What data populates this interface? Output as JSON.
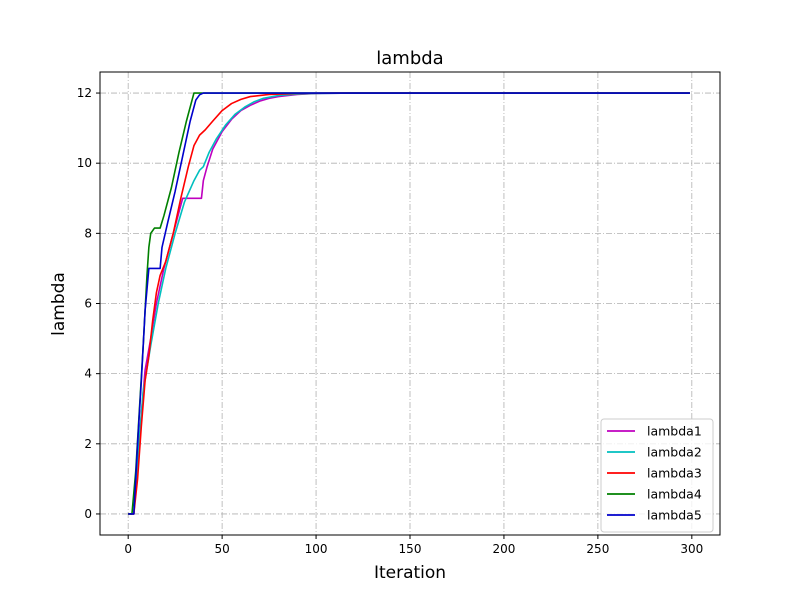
{
  "chart_data": {
    "type": "line",
    "title": "lambda",
    "xlabel": "Iteration",
    "ylabel": "lambda",
    "xlim": [
      -15,
      315
    ],
    "ylim": [
      -0.6,
      12.6
    ],
    "xticks": [
      0,
      50,
      100,
      150,
      200,
      250,
      300
    ],
    "yticks": [
      0,
      2,
      4,
      6,
      8,
      10,
      12
    ],
    "grid": true,
    "legend_position": "lower-right",
    "series": [
      {
        "name": "lambda1",
        "color": "#bf00bf",
        "points": [
          [
            0,
            0
          ],
          [
            3,
            0
          ],
          [
            6,
            2.2
          ],
          [
            9,
            4.1
          ],
          [
            12,
            5.0
          ],
          [
            15,
            6.0
          ],
          [
            19,
            7.0
          ],
          [
            23,
            7.8
          ],
          [
            27,
            8.6
          ],
          [
            29,
            9.0
          ],
          [
            34,
            9.0
          ],
          [
            39,
            9.0
          ],
          [
            40,
            9.5
          ],
          [
            42,
            9.9
          ],
          [
            45,
            10.4
          ],
          [
            50,
            10.9
          ],
          [
            55,
            11.25
          ],
          [
            60,
            11.5
          ],
          [
            65,
            11.65
          ],
          [
            70,
            11.77
          ],
          [
            75,
            11.85
          ],
          [
            80,
            11.9
          ],
          [
            90,
            11.96
          ],
          [
            100,
            11.99
          ],
          [
            120,
            12
          ],
          [
            299,
            12
          ]
        ]
      },
      {
        "name": "lambda2",
        "color": "#00bfbf",
        "points": [
          [
            0,
            0
          ],
          [
            3,
            0
          ],
          [
            5,
            1.5
          ],
          [
            8,
            3.5
          ],
          [
            12,
            4.8
          ],
          [
            16,
            6.0
          ],
          [
            20,
            7.0
          ],
          [
            25,
            8.0
          ],
          [
            30,
            8.9
          ],
          [
            35,
            9.5
          ],
          [
            38,
            9.8
          ],
          [
            40,
            9.9
          ],
          [
            43,
            10.3
          ],
          [
            47,
            10.7
          ],
          [
            52,
            11.1
          ],
          [
            57,
            11.4
          ],
          [
            62,
            11.6
          ],
          [
            67,
            11.75
          ],
          [
            72,
            11.85
          ],
          [
            80,
            11.93
          ],
          [
            90,
            11.97
          ],
          [
            100,
            11.99
          ],
          [
            120,
            12
          ],
          [
            299,
            12
          ]
        ]
      },
      {
        "name": "lambda3",
        "color": "#ff0000",
        "points": [
          [
            0,
            0
          ],
          [
            3,
            0
          ],
          [
            5,
            1.0
          ],
          [
            7,
            2.5
          ],
          [
            9,
            3.8
          ],
          [
            11,
            4.5
          ],
          [
            13,
            5.5
          ],
          [
            15,
            6.3
          ],
          [
            17,
            6.8
          ],
          [
            20,
            7.2
          ],
          [
            24,
            8.0
          ],
          [
            28,
            9.0
          ],
          [
            32,
            9.9
          ],
          [
            35,
            10.5
          ],
          [
            38,
            10.8
          ],
          [
            41,
            10.95
          ],
          [
            45,
            11.2
          ],
          [
            50,
            11.5
          ],
          [
            55,
            11.7
          ],
          [
            60,
            11.82
          ],
          [
            65,
            11.9
          ],
          [
            75,
            11.96
          ],
          [
            90,
            11.99
          ],
          [
            110,
            12
          ],
          [
            299,
            12
          ]
        ]
      },
      {
        "name": "lambda4",
        "color": "#008000",
        "points": [
          [
            0,
            0
          ],
          [
            2,
            0
          ],
          [
            4,
            1.2
          ],
          [
            6,
            3.0
          ],
          [
            8,
            4.8
          ],
          [
            10,
            6.8
          ],
          [
            11,
            7.6
          ],
          [
            12,
            8.0
          ],
          [
            14,
            8.15
          ],
          [
            17,
            8.15
          ],
          [
            19,
            8.5
          ],
          [
            23,
            9.3
          ],
          [
            27,
            10.3
          ],
          [
            31,
            11.2
          ],
          [
            35,
            12
          ],
          [
            299,
            12
          ]
        ]
      },
      {
        "name": "lambda5",
        "color": "#0000cc",
        "points": [
          [
            0,
            0
          ],
          [
            3,
            0
          ],
          [
            5,
            2.0
          ],
          [
            7,
            3.8
          ],
          [
            9,
            5.8
          ],
          [
            11,
            7.0
          ],
          [
            17,
            7.0
          ],
          [
            18,
            7.6
          ],
          [
            21,
            8.3
          ],
          [
            25,
            9.2
          ],
          [
            29,
            10.2
          ],
          [
            33,
            11.2
          ],
          [
            36,
            11.8
          ],
          [
            38,
            11.95
          ],
          [
            40,
            12
          ],
          [
            299,
            12
          ]
        ]
      }
    ]
  }
}
